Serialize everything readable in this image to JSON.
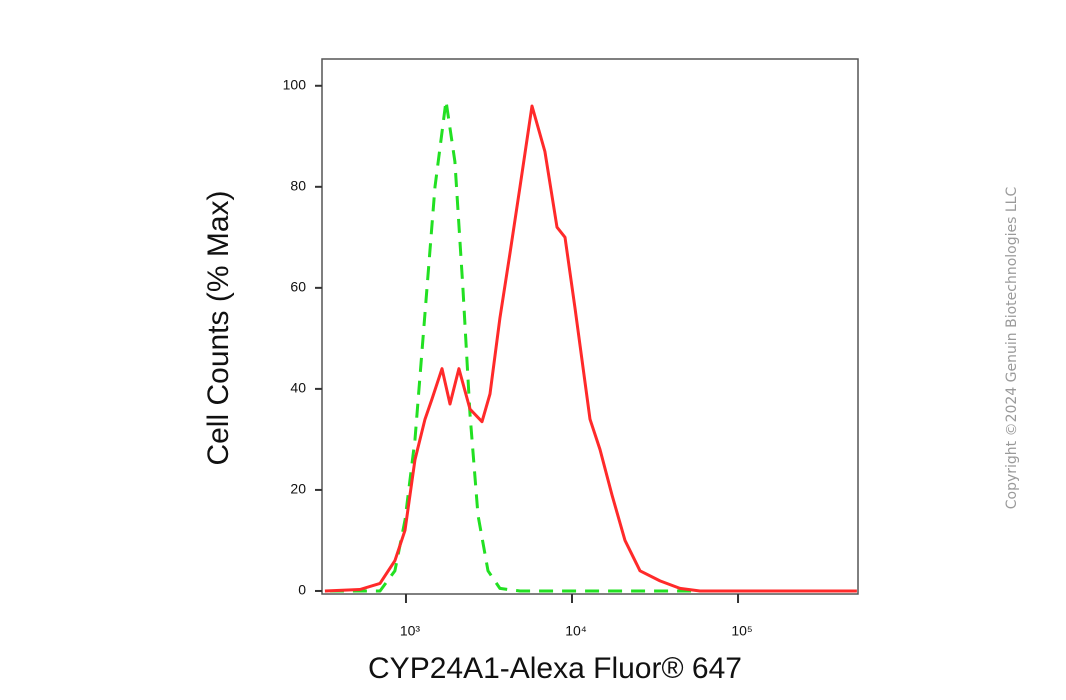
{
  "chart_data": {
    "type": "line",
    "x_label": "CYP24A1-Alexa Fluor® 647",
    "y_label": "Cell Counts (% Max)",
    "annotations": [
      "Copyright ©2024 Genuin Biotechnologies LLC"
    ],
    "x_scale": "log",
    "xlim": [
      312,
      528000
    ],
    "ylim": [
      -0.6,
      105.3
    ],
    "xticks": [
      {
        "value": 1000,
        "label": "10³"
      },
      {
        "value": 10000,
        "label": "10⁴"
      },
      {
        "value": 100000,
        "label": "10⁵"
      }
    ],
    "yticks": [
      0,
      20,
      40,
      60,
      80,
      100
    ],
    "series": [
      {
        "color": "#22e022",
        "dashed": true,
        "x": [
          348,
          697,
          858,
          986,
          1133,
          1301,
          1495,
          1741,
          1972,
          2203,
          2430,
          2716,
          3119,
          3681,
          4864,
          59000,
          520000
        ],
        "values": [
          0,
          0,
          4,
          14,
          30,
          55,
          80,
          97,
          85,
          60,
          35,
          15,
          4,
          0.5,
          0,
          0,
          0
        ]
      },
      {
        "color": "#ff2a2a",
        "dashed": false,
        "x": [
          325,
          528,
          697,
          858,
          986,
          1133,
          1301,
          1435,
          1649,
          1841,
          2084,
          2430,
          2871,
          3206,
          3681,
          4236,
          4864,
          5741,
          6871,
          8120,
          9070,
          10430,
          12840,
          14750,
          17420,
          20860,
          25680,
          33900,
          44730,
          59000,
          520000
        ],
        "values": [
          0,
          0.3,
          1.5,
          6,
          12,
          26,
          34,
          38,
          44,
          37,
          44,
          36,
          33.5,
          39,
          54,
          67,
          80,
          96,
          87,
          72,
          70,
          56,
          34,
          28,
          19,
          10,
          4,
          2,
          0.5,
          0,
          0
        ]
      }
    ]
  }
}
